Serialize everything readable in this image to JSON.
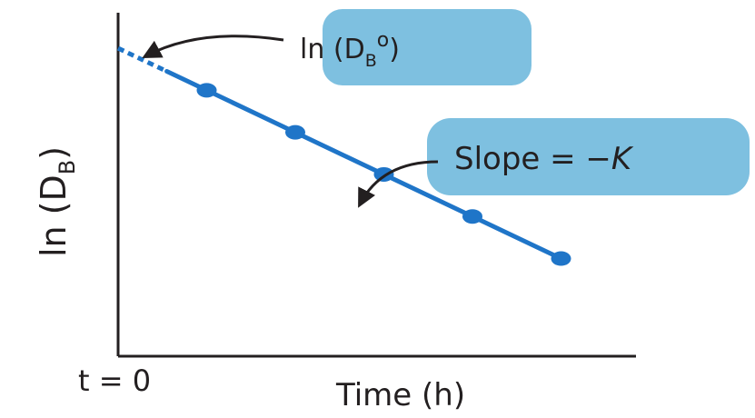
{
  "chart_data": {
    "type": "scatter",
    "xlabel": "Time (h)",
    "x_tick_label": "t = 0",
    "ylabel": "ln (D",
    "ylabel_sub": "B",
    "ylabel_close": ")",
    "points": [
      {
        "x": 1,
        "y": 7.3
      },
      {
        "x": 2,
        "y": 6.2
      },
      {
        "x": 3,
        "y": 5.0
      },
      {
        "x": 4,
        "y": 3.9
      },
      {
        "x": 5,
        "y": 2.6
      }
    ],
    "fit_line": {
      "x_start": 0,
      "y_start": 8.2,
      "x_end": 5,
      "y_end": 2.6,
      "extrapolated_until": 0.55
    },
    "xlim": [
      0,
      6
    ],
    "ylim": [
      0,
      9
    ],
    "annotations": {
      "intercept": {
        "text": "ln (D",
        "sub": "B",
        "sup": "o",
        "close": ")"
      },
      "slope": {
        "text": "Slope = −",
        "italic": "K"
      }
    },
    "colors": {
      "line": "#1f75c8",
      "points": "#1f75c8",
      "highlight": "#7ec0e0",
      "text": "#231f20",
      "axes": "#231f20"
    }
  }
}
